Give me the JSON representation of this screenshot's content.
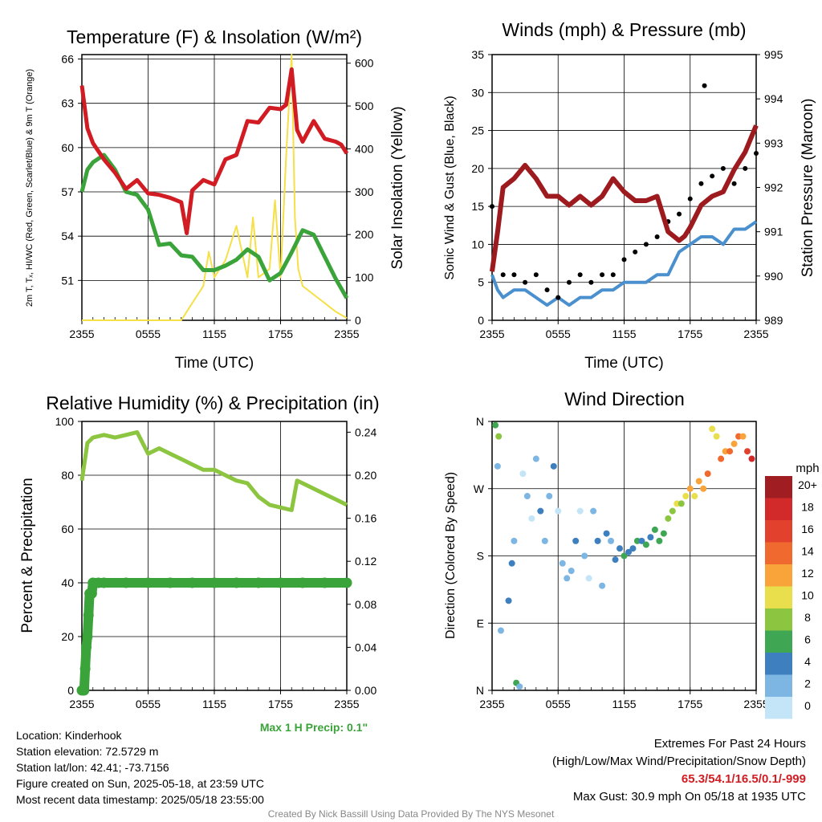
{
  "panels": {
    "temp": {
      "title": "Temperature (F) & Insolation (W/m²)",
      "ylabel_left": "2m T, Tₓ, HI/WC (Red, Green, Scarlet/Blue) & 9m T (Orange)",
      "ylabel_right": "Solar Insolation (Yellow)",
      "xlabel": "Time (UTC)"
    },
    "wind": {
      "title": "Winds (mph) & Pressure (mb)",
      "ylabel_left": "Sonic Wind & Gust (Blue, Black)",
      "ylabel_right": "Station Pressure (Maroon)",
      "xlabel": "Time (UTC)"
    },
    "rh": {
      "title": "Relative Humidity (%) & Precipitation (in)",
      "ylabel_left": "Percent & Precipitation",
      "max_precip": "Max 1 H Precip: 0.1\""
    },
    "dir": {
      "title": "Wind Direction",
      "ylabel_left": "Direction (Colored By Speed)",
      "colorbar_title": "mph",
      "colorbar_labels": [
        "20+",
        "18",
        "16",
        "14",
        "12",
        "10",
        "8",
        "6",
        "4",
        "2",
        "0"
      ],
      "colorbar_colors": [
        "#a01d21",
        "#d22a2a",
        "#e2412d",
        "#f06a30",
        "#f9a33b",
        "#e9df4d",
        "#8cc540",
        "#3fa654",
        "#3d7fbf",
        "#7db6e3",
        "#c4e4f7"
      ]
    }
  },
  "info": {
    "location": "Location: Kinderhook",
    "elevation": "Station elevation: 72.5729 m",
    "latlon": "Station lat/lon: 42.41; -73.7156",
    "created": "Figure created on Sun, 2025-05-18, at 23:59 UTC",
    "recent": "Most recent data timestamp: 2025/05/18 23:55:00",
    "extremes_title": "Extremes For Past 24 Hours",
    "extremes_sub": "(High/Low/Max Wind/Precipitation/Snow Depth)",
    "extremes_values": "65.3/54.1/16.5/0.1/-999",
    "max_gust": "Max Gust: 30.9 mph On 05/18 at 1935 UTC",
    "credit": "Created By Nick Bassill Using Data Provided By The NYS Mesonet"
  },
  "chart_data": [
    {
      "type": "line",
      "title": "Temperature (F) & Insolation (W/m2)",
      "x_ticks": [
        "2355",
        "0555",
        "1155",
        "1755",
        "2355"
      ],
      "xlim": [
        0,
        24
      ],
      "y_left_ticks": [
        51,
        54,
        57,
        60,
        63,
        66
      ],
      "ylim_left": [
        48.3,
        66.3
      ],
      "y_right_ticks": [
        0,
        100,
        200,
        300,
        400,
        500,
        600
      ],
      "ylim_right": [
        0,
        620
      ],
      "series": [
        {
          "name": "2m T",
          "color": "#d01c22",
          "axis": "left",
          "x": [
            0,
            0.5,
            1,
            2,
            3,
            4,
            5,
            6,
            7,
            8,
            9,
            9.5,
            10,
            11,
            12,
            13,
            14,
            15,
            16,
            17,
            18,
            18.5,
            19,
            19.5,
            20,
            21,
            22,
            23,
            23.5,
            24
          ],
          "y": [
            64.2,
            61.3,
            60.3,
            59.2,
            58.3,
            57.2,
            57.8,
            56.9,
            56.8,
            56.6,
            56.3,
            54.2,
            57.1,
            57.8,
            57.5,
            59.2,
            59.5,
            61.8,
            61.7,
            62.7,
            62.6,
            62.9,
            65.3,
            61.2,
            60.4,
            61.8,
            60.6,
            60.4,
            60.2,
            59.6
          ]
        },
        {
          "name": "2m Td",
          "color": "#3aa33a",
          "axis": "left",
          "x": [
            0,
            0.5,
            1,
            2,
            3,
            4,
            5,
            6,
            7,
            8,
            9,
            10,
            11,
            12,
            13,
            14,
            15,
            16,
            17,
            18,
            19,
            20,
            21,
            22,
            23,
            24
          ],
          "y": [
            57.0,
            58.5,
            59.0,
            59.5,
            58.5,
            57.0,
            56.8,
            55.8,
            53.4,
            53.5,
            52.7,
            52.6,
            51.7,
            51.7,
            52.0,
            52.4,
            53.1,
            52.6,
            51.0,
            51.5,
            52.9,
            54.4,
            54.1,
            52.6,
            51.1,
            49.8
          ]
        },
        {
          "name": "Solar Insolation",
          "color": "#f5e04a",
          "axis": "right",
          "x": [
            0,
            4,
            8,
            9,
            9.5,
            10,
            11,
            11.5,
            12,
            13,
            14,
            15,
            15.5,
            16,
            17,
            17.5,
            18,
            18.5,
            19,
            19.3,
            19.6,
            20,
            21,
            22,
            23,
            24
          ],
          "y": [
            0,
            0,
            0,
            0,
            20,
            40,
            80,
            160,
            100,
            140,
            220,
            100,
            240,
            100,
            120,
            280,
            100,
            380,
            620,
            240,
            120,
            80,
            60,
            40,
            20,
            5
          ]
        }
      ]
    },
    {
      "type": "line",
      "title": "Winds (mph) & Pressure (mb)",
      "x_ticks": [
        "2355",
        "0555",
        "1155",
        "1755",
        "2355"
      ],
      "xlim": [
        0,
        24
      ],
      "y_left_ticks": [
        0,
        5,
        10,
        15,
        20,
        25,
        30,
        35
      ],
      "ylim_left": [
        0,
        35
      ],
      "y_right_ticks": [
        989,
        990,
        991,
        992,
        993,
        994,
        995
      ],
      "ylim_right": [
        989,
        995
      ],
      "series": [
        {
          "name": "Station Pressure",
          "color": "#9d1b1e",
          "axis": "right",
          "x": [
            0,
            0.5,
            1,
            2,
            3,
            4,
            5,
            6,
            7,
            8,
            9,
            10,
            11,
            12,
            13,
            14,
            15,
            15.5,
            16,
            17,
            17.5,
            18,
            19,
            20,
            21,
            22,
            23,
            24
          ],
          "y": [
            990.1,
            991.0,
            992.0,
            992.2,
            992.5,
            992.2,
            991.8,
            991.8,
            991.6,
            991.8,
            991.6,
            991.8,
            992.2,
            991.9,
            991.7,
            991.7,
            991.8,
            991.4,
            991.0,
            990.8,
            990.9,
            991.1,
            991.6,
            991.8,
            991.9,
            992.4,
            992.8,
            993.4
          ]
        },
        {
          "name": "Sonic Wind",
          "color": "#4a90cf",
          "axis": "left",
          "x": [
            0,
            0.5,
            1,
            2,
            3,
            4,
            5,
            6,
            7,
            8,
            9,
            10,
            11,
            12,
            13,
            14,
            15,
            16,
            17,
            18,
            19,
            20,
            21,
            22,
            23,
            24
          ],
          "y": [
            6,
            4,
            3,
            4,
            4,
            3,
            2,
            3,
            2,
            3,
            3,
            4,
            4,
            5,
            5,
            5,
            6,
            6,
            9,
            10,
            11,
            11,
            10,
            12,
            12,
            13
          ]
        },
        {
          "name": "Gust",
          "color": "#000000",
          "axis": "left",
          "x": [
            0,
            1,
            2,
            3,
            4,
            5,
            6,
            7,
            8,
            9,
            10,
            11,
            12,
            13,
            14,
            15,
            16,
            17,
            18,
            19,
            19.3,
            20,
            21,
            22,
            23,
            24
          ],
          "y": [
            15,
            6,
            6,
            5,
            6,
            4,
            3,
            5,
            6,
            5,
            6,
            6,
            8,
            9,
            10,
            11,
            13,
            14,
            16,
            18,
            30.9,
            19,
            20,
            18,
            20,
            22
          ]
        }
      ]
    },
    {
      "type": "line",
      "title": "Relative Humidity (%) & Precipitation (in)",
      "x_ticks": [
        "2355",
        "0555",
        "1155",
        "1755",
        "2355"
      ],
      "xlim": [
        0,
        24
      ],
      "y_left_ticks": [
        0,
        20,
        40,
        60,
        80,
        100
      ],
      "ylim_left": [
        0,
        100
      ],
      "y_right_ticks": [
        "0.00",
        "0.04",
        "0.08",
        "0.12",
        "0.16",
        "0.20",
        "0.24"
      ],
      "ylim_right": [
        0,
        0.25
      ],
      "series": [
        {
          "name": "Relative Humidity",
          "color": "#8cc540",
          "axis": "left",
          "x": [
            0,
            0.5,
            1,
            2,
            3,
            4,
            5,
            6,
            7,
            8,
            9,
            10,
            11,
            12,
            13,
            14,
            15,
            16,
            17,
            18,
            19,
            19.5,
            20,
            21,
            22,
            23,
            24
          ],
          "y": [
            78,
            92,
            94,
            95,
            94,
            95,
            96,
            88,
            90,
            88,
            86,
            84,
            82,
            82,
            80,
            78,
            77,
            72,
            69,
            68,
            67,
            78,
            77,
            75,
            73,
            71,
            69
          ]
        },
        {
          "name": "Precipitation",
          "color": "#3aa33a",
          "axis": "right",
          "x": [
            0,
            0.2,
            0.3,
            0.4,
            0.5,
            0.6,
            0.7,
            0.8,
            0.9,
            1.0,
            1.5,
            2,
            4,
            6,
            8,
            10,
            12,
            14,
            16,
            18,
            20,
            22,
            24
          ],
          "y": [
            0,
            0,
            0.02,
            0.04,
            0.05,
            0.07,
            0.09,
            0.09,
            0.09,
            0.1,
            0.1,
            0.1,
            0.1,
            0.1,
            0.1,
            0.1,
            0.1,
            0.1,
            0.1,
            0.1,
            0.1,
            0.1,
            0.1
          ]
        }
      ]
    },
    {
      "type": "scatter",
      "title": "Wind Direction",
      "x_ticks": [
        "2355",
        "0555",
        "1155",
        "1755",
        "2355"
      ],
      "xlim": [
        0,
        24
      ],
      "y_ticks": [
        "N",
        "E",
        "S",
        "W",
        "N"
      ],
      "ylim": [
        0,
        360
      ],
      "x": [
        0.3,
        0.6,
        0.5,
        0.8,
        1.5,
        1.8,
        2.0,
        2.2,
        2.5,
        2.8,
        3.2,
        3.6,
        4.0,
        4.4,
        4.8,
        5.2,
        5.6,
        6.0,
        6.4,
        6.8,
        7.2,
        7.6,
        8.0,
        8.4,
        8.8,
        9.2,
        9.6,
        10.0,
        10.4,
        10.8,
        11.2,
        11.6,
        12.0,
        12.4,
        12.8,
        13.2,
        13.6,
        14.0,
        14.4,
        14.8,
        15.2,
        15.6,
        16.0,
        16.4,
        16.8,
        17.2,
        17.6,
        18.0,
        18.4,
        18.8,
        19.2,
        19.6,
        20.0,
        20.4,
        20.8,
        21.2,
        21.6,
        22.0,
        22.4,
        22.8,
        23.2,
        23.6
      ],
      "y": [
        355,
        340,
        300,
        80,
        120,
        170,
        200,
        10,
        5,
        290,
        260,
        230,
        310,
        240,
        200,
        260,
        300,
        240,
        170,
        150,
        160,
        200,
        240,
        180,
        150,
        240,
        200,
        140,
        210,
        200,
        175,
        190,
        180,
        185,
        190,
        200,
        200,
        195,
        205,
        215,
        200,
        210,
        230,
        240,
        250,
        250,
        260,
        270,
        260,
        280,
        270,
        290,
        350,
        340,
        310,
        320,
        320,
        330,
        340,
        340,
        320,
        310
      ],
      "speed": [
        6,
        8,
        2,
        2,
        4,
        4,
        2,
        6,
        2,
        0,
        2,
        0,
        2,
        4,
        2,
        2,
        4,
        0,
        2,
        2,
        2,
        4,
        0,
        2,
        0,
        2,
        4,
        2,
        4,
        2,
        4,
        4,
        6,
        4,
        4,
        6,
        4,
        6,
        4,
        6,
        6,
        6,
        8,
        8,
        10,
        8,
        10,
        12,
        10,
        12,
        12,
        14,
        10,
        10,
        14,
        12,
        14,
        12,
        14,
        12,
        16,
        18
      ]
    }
  ]
}
